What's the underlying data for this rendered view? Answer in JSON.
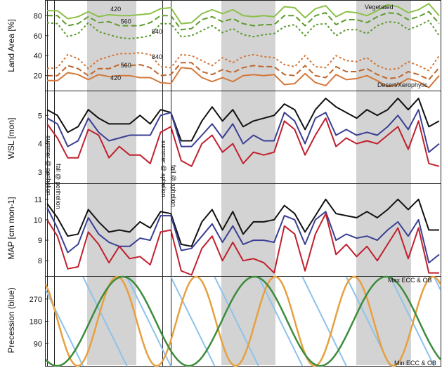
{
  "figure": {
    "panels": [
      "land_area",
      "wsl",
      "map",
      "precession"
    ]
  },
  "colors": {
    "green_light": "#8cc04a",
    "green_dark": "#5e9c2e",
    "orange": "#d4783a",
    "orange_dark": "#c0662c",
    "black": "#111111",
    "navy": "#3a3f93",
    "red": "#c0202e",
    "sky": "#8ec3ea",
    "amber": "#e6a040",
    "forest": "#3c8c3c",
    "shade": "#d3d3d3"
  },
  "annotations": {
    "summer_perihelion": "summer @ perihelion",
    "fall_perihelion": "fall @ perihelion",
    "summer_aphelion": "summer @ aphelion",
    "fall_aphelion": "fall @ aphelion",
    "vegetated": "Vegetated",
    "desert": "Desert/Xerophytic",
    "max_label": "Max ECC & OB",
    "min_label": "Min ECC & OB"
  },
  "chart_data": [
    {
      "type": "line",
      "id": "land_area",
      "ylabel": "Land Area [%]",
      "ylim": [
        5,
        95
      ],
      "yticks": [
        20,
        40,
        60,
        80
      ],
      "x": [
        0,
        1,
        2,
        3,
        4,
        5,
        6,
        7,
        8,
        9,
        10,
        11,
        12,
        13,
        14,
        15,
        16,
        17,
        18,
        19,
        20,
        21,
        22,
        23,
        24,
        25,
        26,
        27,
        28,
        29,
        30,
        31,
        32,
        33,
        34,
        35,
        36,
        37,
        38
      ],
      "series": [
        {
          "name": "Vegetated 420",
          "label": "420",
          "color": "green_light",
          "dash": "solid",
          "values": [
            85,
            85,
            77,
            79,
            84,
            79,
            81,
            80,
            80,
            81,
            82,
            87,
            88,
            72,
            73,
            82,
            86,
            82,
            86,
            80,
            79,
            80,
            79,
            89,
            88,
            78,
            87,
            90,
            79,
            84,
            83,
            80,
            85,
            91,
            89,
            83,
            86,
            92,
            80
          ]
        },
        {
          "name": "Vegetated 560",
          "label": "560",
          "color": "green_dark",
          "dash": "long",
          "values": [
            80,
            80,
            70,
            72,
            79,
            73,
            74,
            70,
            70,
            70,
            73,
            80,
            80,
            66,
            67,
            76,
            79,
            74,
            77,
            72,
            70,
            71,
            71,
            80,
            80,
            70,
            80,
            83,
            71,
            76,
            76,
            73,
            79,
            83,
            82,
            76,
            79,
            84,
            72
          ]
        },
        {
          "name": "Vegetated 840",
          "label": "840",
          "color": "green_dark",
          "dash": "short",
          "values": [
            73,
            72,
            59,
            62,
            73,
            64,
            61,
            58,
            57,
            58,
            60,
            72,
            72,
            59,
            60,
            65,
            70,
            63,
            67,
            61,
            59,
            61,
            62,
            69,
            71,
            60,
            71,
            72,
            60,
            66,
            66,
            62,
            70,
            74,
            73,
            66,
            70,
            75,
            60
          ]
        },
        {
          "name": "Desert 840",
          "label": "840",
          "color": "orange",
          "dash": "short",
          "values": [
            27,
            28,
            41,
            37,
            27,
            36,
            39,
            42,
            42,
            43,
            41,
            29,
            28,
            41,
            40,
            35,
            30,
            38,
            33,
            39,
            41,
            39,
            38,
            31,
            29,
            40,
            29,
            28,
            40,
            35,
            34,
            38,
            30,
            26,
            27,
            34,
            30,
            25,
            40
          ]
        },
        {
          "name": "Desert 560",
          "label": "560",
          "color": "orange_dark",
          "dash": "long",
          "values": [
            20,
            20,
            30,
            27,
            20,
            27,
            27,
            31,
            30,
            31,
            28,
            20,
            21,
            33,
            33,
            24,
            21,
            26,
            23,
            28,
            30,
            29,
            29,
            21,
            20,
            30,
            20,
            18,
            29,
            24,
            24,
            27,
            21,
            17,
            18,
            24,
            21,
            16,
            28
          ]
        },
        {
          "name": "Desert 420",
          "label": "420",
          "color": "orange",
          "dash": "solid",
          "values": [
            15,
            15,
            23,
            21,
            16,
            21,
            19,
            20,
            20,
            18,
            18,
            13,
            12,
            28,
            27,
            18,
            14,
            18,
            14,
            20,
            21,
            20,
            21,
            11,
            12,
            22,
            13,
            10,
            21,
            16,
            17,
            20,
            15,
            9,
            11,
            17,
            14,
            8,
            20
          ]
        }
      ]
    },
    {
      "type": "line",
      "id": "wsl",
      "ylabel": "WSL [mon]",
      "ylim": [
        2.6,
        5.85
      ],
      "yticks": [
        3,
        4,
        5
      ],
      "x": [
        0,
        1,
        2,
        3,
        4,
        5,
        6,
        7,
        8,
        9,
        10,
        11,
        12,
        13,
        14,
        15,
        16,
        17,
        18,
        19,
        20,
        21,
        22,
        23,
        24,
        25,
        26,
        27,
        28,
        29,
        30,
        31,
        32,
        33,
        34,
        35,
        36,
        37,
        38
      ],
      "series": [
        {
          "name": "black",
          "color": "black",
          "values": [
            5.2,
            5.0,
            4.4,
            4.6,
            5.2,
            4.9,
            4.7,
            4.7,
            4.7,
            5.0,
            4.7,
            5.2,
            5.1,
            4.1,
            4.1,
            4.8,
            5.3,
            4.8,
            5.2,
            4.6,
            4.8,
            4.9,
            5.0,
            5.4,
            5.2,
            4.5,
            5.2,
            5.6,
            5.3,
            5.1,
            4.9,
            5.2,
            5.0,
            5.2,
            5.6,
            5.2,
            5.6,
            4.6,
            4.8
          ]
        },
        {
          "name": "navy",
          "color": "navy",
          "values": [
            4.9,
            4.7,
            3.9,
            4.1,
            4.9,
            4.4,
            4.1,
            4.2,
            4.3,
            4.3,
            4.3,
            5.0,
            5.1,
            3.9,
            3.9,
            4.3,
            4.7,
            4.2,
            4.7,
            4.0,
            4.3,
            4.1,
            4.1,
            5.1,
            4.8,
            4.0,
            4.9,
            5.1,
            4.3,
            4.5,
            4.3,
            4.4,
            4.3,
            4.6,
            5.0,
            4.5,
            5.2,
            3.7,
            4.0
          ]
        },
        {
          "name": "red",
          "color": "red",
          "values": [
            4.7,
            4.2,
            3.5,
            3.5,
            4.5,
            4.3,
            3.5,
            3.9,
            3.6,
            3.6,
            3.3,
            4.4,
            4.6,
            3.4,
            3.2,
            4.0,
            4.3,
            3.7,
            4.0,
            3.3,
            3.7,
            3.6,
            3.7,
            4.8,
            4.5,
            3.6,
            4.3,
            4.9,
            3.9,
            4.2,
            4.0,
            4.1,
            4.0,
            4.3,
            4.6,
            3.8,
            4.8,
            3.3,
            3.2
          ]
        }
      ]
    },
    {
      "type": "line",
      "id": "map",
      "ylabel": "MAP [cm mon-1]",
      "ylim": [
        7.25,
        11.75
      ],
      "yticks": [
        8,
        9,
        10,
        11
      ],
      "x": [
        0,
        1,
        2,
        3,
        4,
        5,
        6,
        7,
        8,
        9,
        10,
        11,
        12,
        13,
        14,
        15,
        16,
        17,
        18,
        19,
        20,
        21,
        22,
        23,
        24,
        25,
        26,
        27,
        28,
        29,
        30,
        31,
        32,
        33,
        34,
        35,
        36,
        37,
        38
      ],
      "series": [
        {
          "name": "black",
          "color": "black",
          "values": [
            10.8,
            10.1,
            9.2,
            9.3,
            10.5,
            9.9,
            9.4,
            9.5,
            9.4,
            9.9,
            9.6,
            10.4,
            10.3,
            8.8,
            8.7,
            9.9,
            10.5,
            9.5,
            10.4,
            9.3,
            9.9,
            9.9,
            10.0,
            10.7,
            10.3,
            9.4,
            10.2,
            11.0,
            10.3,
            10.2,
            10.1,
            10.4,
            10.1,
            10.5,
            11.0,
            10.5,
            11.0,
            9.5,
            9.5
          ]
        },
        {
          "name": "navy",
          "color": "navy",
          "values": [
            10.6,
            9.6,
            8.4,
            8.8,
            10.1,
            9.3,
            8.9,
            8.7,
            8.7,
            9.1,
            9.0,
            10.2,
            10.2,
            8.5,
            8.6,
            9.2,
            9.8,
            8.9,
            9.7,
            8.8,
            9.0,
            9.0,
            8.9,
            10.2,
            10.0,
            8.8,
            10.0,
            10.4,
            9.0,
            9.3,
            9.1,
            9.2,
            9.0,
            9.5,
            9.9,
            9.2,
            10.0,
            7.9,
            8.3
          ]
        },
        {
          "name": "red",
          "color": "red",
          "values": [
            10.0,
            9.2,
            7.6,
            7.7,
            9.4,
            8.8,
            7.9,
            8.7,
            8.1,
            8.2,
            7.8,
            9.4,
            9.5,
            7.5,
            7.3,
            8.6,
            9.2,
            8.0,
            8.9,
            8.0,
            8.1,
            7.9,
            7.4,
            9.7,
            9.3,
            7.5,
            9.3,
            10.3,
            8.3,
            8.8,
            8.2,
            8.7,
            8.0,
            8.8,
            9.6,
            8.1,
            9.6,
            7.4,
            7.4
          ]
        }
      ]
    },
    {
      "type": "line",
      "id": "precession",
      "ylabel": "Precession (blue)",
      "ylim": [
        0,
        360
      ],
      "yticks": [
        90,
        180,
        270
      ],
      "xlim": [
        0,
        38
      ],
      "sawtooth_cycles": 9,
      "amber_cycles": 5,
      "green_cycles": 3,
      "series": [
        {
          "name": "precession",
          "color": "sky"
        },
        {
          "name": "amber",
          "color": "amber"
        },
        {
          "name": "green",
          "color": "forest"
        }
      ]
    }
  ],
  "shading_x": [
    [
      14.5,
      22.5
    ],
    [
      63.5,
      70.5
    ],
    [
      111.5,
      119.5
    ]
  ]
}
